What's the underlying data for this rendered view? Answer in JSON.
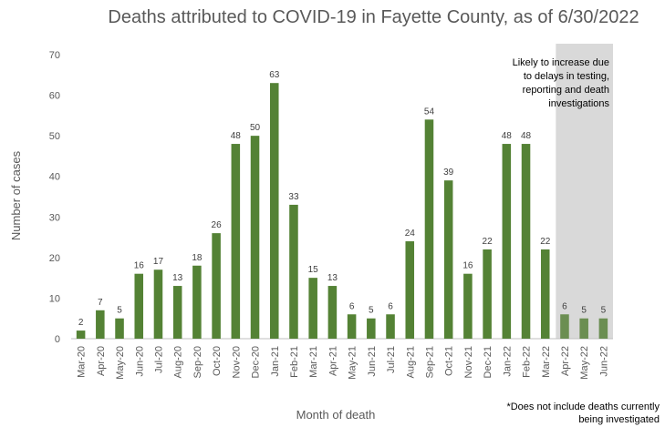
{
  "chart_data": {
    "type": "bar",
    "title": "Deaths attributed to COVID-19 in Fayette County, as of 6/30/2022",
    "xlabel": "Month of death",
    "ylabel": "Number of cases",
    "ylim": [
      0,
      70
    ],
    "yticks": [
      0,
      10,
      20,
      30,
      40,
      50,
      60,
      70
    ],
    "categories": [
      "Mar-20",
      "Apr-20",
      "May-20",
      "Jun-20",
      "Jul-20",
      "Aug-20",
      "Sep-20",
      "Oct-20",
      "Nov-20",
      "Dec-20",
      "Jan-21",
      "Feb-21",
      "Mar-21",
      "Apr-21",
      "May-21",
      "Jun-21",
      "Jul-21",
      "Aug-21",
      "Sep-21",
      "Oct-21",
      "Nov-21",
      "Dec-21",
      "Jan-22",
      "Feb-22",
      "Mar-22",
      "Apr-22",
      "May-22",
      "Jun-22"
    ],
    "values": [
      2,
      7,
      5,
      16,
      17,
      13,
      18,
      26,
      48,
      50,
      63,
      33,
      15,
      13,
      6,
      5,
      6,
      24,
      54,
      39,
      16,
      22,
      48,
      48,
      22,
      6,
      5,
      5
    ],
    "highlight_from_index": 25,
    "bar_color": "#548235",
    "highlight_bar_color": "#6b8e52",
    "shade_color": "#d9d9d9",
    "annotation_lines": [
      "Likely to increase due",
      "to delays in testing,",
      "reporting and death",
      "investigations"
    ],
    "footnote_lines": [
      "*Does not include deaths currently",
      "being investigated"
    ],
    "grid": false
  }
}
